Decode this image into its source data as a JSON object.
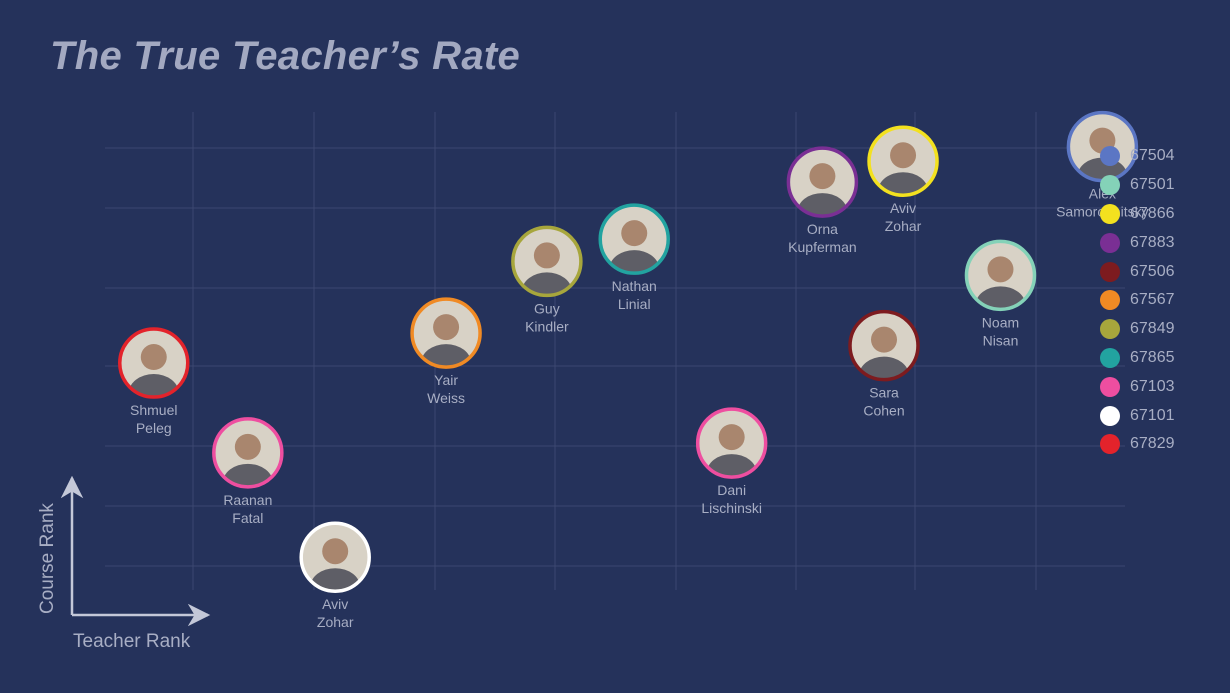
{
  "title": "The True Teacher’s Rate",
  "chart_data": {
    "type": "scatter",
    "title": "The True Teacher’s Rate",
    "xlabel": "Teacher Rank",
    "ylabel": "Course Rank",
    "xlim": [
      0,
      10
    ],
    "ylim": [
      0,
      7.5
    ],
    "grid": true,
    "legend_position": "right",
    "series": [
      {
        "name": "67504",
        "color": "#5b76c4"
      },
      {
        "name": "67501",
        "color": "#84d2b8"
      },
      {
        "name": "67866",
        "color": "#f3e11f"
      },
      {
        "name": "67883",
        "color": "#7a2f94"
      },
      {
        "name": "67506",
        "color": "#7d1b1f"
      },
      {
        "name": "67567",
        "color": "#f08a24"
      },
      {
        "name": "67849",
        "color": "#a7a63c"
      },
      {
        "name": "67865",
        "color": "#22a3a0"
      },
      {
        "name": "67103",
        "color": "#ee4ea0"
      },
      {
        "name": "67101",
        "color": "#ffffff"
      },
      {
        "name": "67829",
        "color": "#e3232b"
      }
    ],
    "points": [
      {
        "series": "67829",
        "first": "Shmuel",
        "last": "Peleg",
        "x": 0.73,
        "y": 3.62
      },
      {
        "series": "67103",
        "first": "Raanan",
        "last": "Fatal",
        "x": 1.57,
        "y": 2.33
      },
      {
        "series": "67101",
        "first": "Aviv",
        "last": "Zohar",
        "x": 2.35,
        "y": 0.83
      },
      {
        "series": "67567",
        "first": "Yair",
        "last": "Weiss",
        "x": 3.34,
        "y": 4.05
      },
      {
        "series": "67849",
        "first": "Guy",
        "last": "Kindler",
        "x": 4.24,
        "y": 5.08
      },
      {
        "series": "67865",
        "first": "Nathan",
        "last": "Linial",
        "x": 5.02,
        "y": 5.4
      },
      {
        "series": "67103",
        "first": "Dani",
        "last": "Lischinski",
        "x": 5.89,
        "y": 2.47
      },
      {
        "series": "67883",
        "first": "Orna",
        "last": "Kupferman",
        "x": 6.7,
        "y": 6.22
      },
      {
        "series": "67866",
        "first": "Aviv",
        "last": "Zohar",
        "x": 7.42,
        "y": 6.52
      },
      {
        "series": "67506",
        "first": "Sara",
        "last": "Cohen",
        "x": 7.25,
        "y": 3.87
      },
      {
        "series": "67501",
        "first": "Noam",
        "last": "Nisan",
        "x": 8.29,
        "y": 4.88
      },
      {
        "series": "67504",
        "first": "Alex",
        "last": "Samorodnitsky",
        "x": 9.2,
        "y": 6.73
      }
    ]
  }
}
